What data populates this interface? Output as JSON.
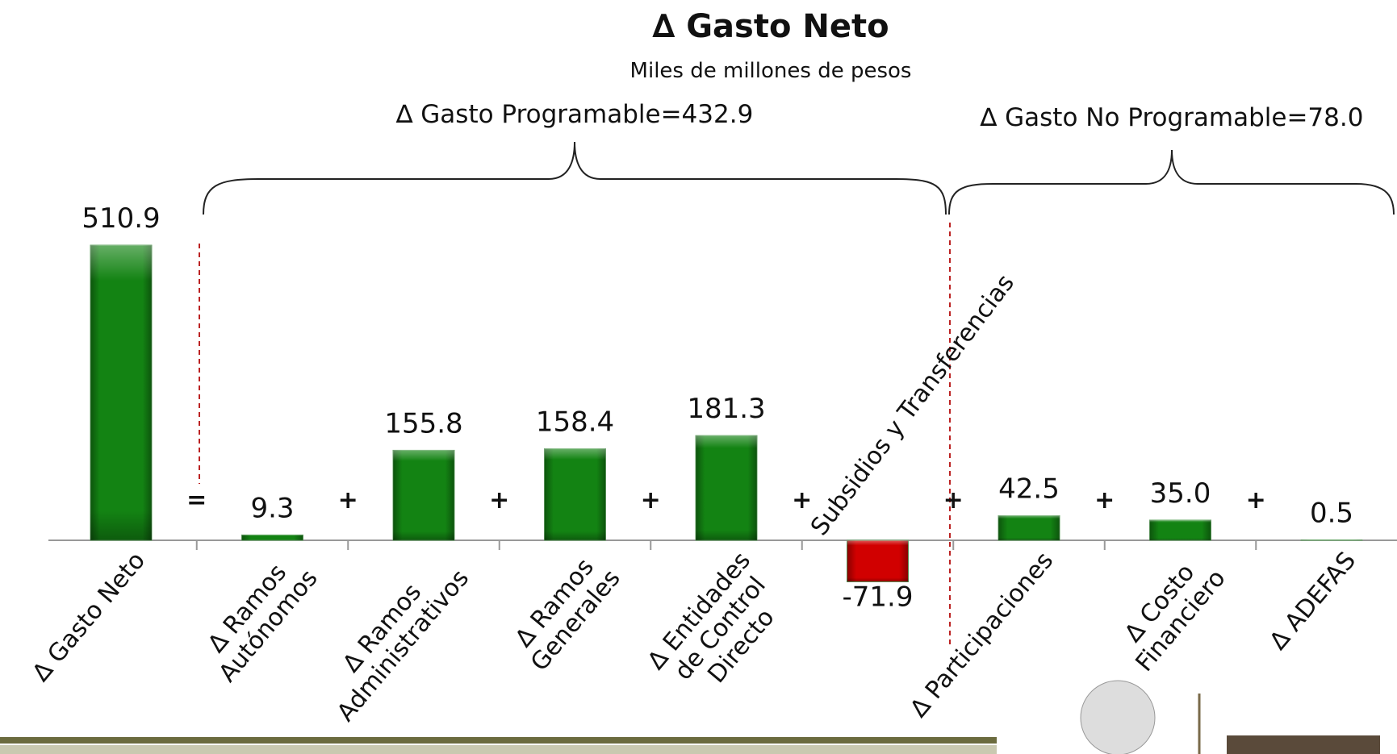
{
  "chart_data": {
    "type": "bar",
    "title": "∆ Gasto Neto",
    "subtitle": "Miles de millones de pesos",
    "annotations": [
      "∆ Gasto Programable=432.9",
      "∆ Gasto No Programable=78.0"
    ],
    "categories": [
      "∆ Gasto Neto",
      "∆ Ramos\nAutónomos",
      "∆ Ramos\nAdministrativos",
      "∆ Ramos\nGenerales",
      "∆ Entidades\nde Control\nDirecto",
      "Subsidios y Transferencias",
      "∆ Participaciones",
      "∆ Costo\nFinanciero",
      "∆ ADEFAS"
    ],
    "values": [
      510.9,
      9.3,
      155.8,
      158.4,
      181.3,
      -71.9,
      42.5,
      35.0,
      0.5
    ],
    "value_labels": [
      "510.9",
      "9.3",
      "155.8",
      "158.4",
      "181.3",
      "-71.9",
      "42.5",
      "35.0",
      "0.5"
    ],
    "colors": [
      "#138313",
      "#138313",
      "#138313",
      "#138313",
      "#138313",
      "#d10000",
      "#138313",
      "#138313",
      "#138313"
    ],
    "operators": [
      "=",
      "+",
      "+",
      "+",
      "+",
      "+",
      "+",
      "+"
    ]
  }
}
